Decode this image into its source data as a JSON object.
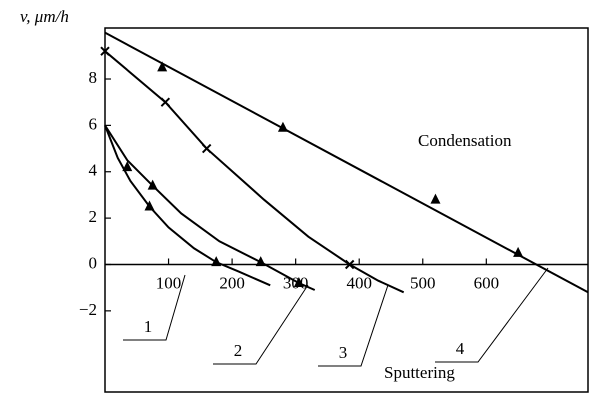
{
  "chart_data": {
    "type": "line",
    "y_label": "v, μm/h",
    "xlim": [
      0,
      760
    ],
    "ylim": [
      -5.5,
      10.2
    ],
    "xticks": [
      100,
      200,
      300,
      400,
      500,
      600
    ],
    "yticks": [
      {
        "value": -2,
        "label": "−2"
      },
      0,
      2,
      4,
      6,
      8
    ],
    "annotations": [
      "Condensation",
      "Sputtering"
    ],
    "series": [
      {
        "name": "1",
        "color": "#000000",
        "marker": "triangle",
        "x": [
          70,
          175
        ],
        "values": [
          2.5,
          0.1
        ],
        "curve_x": [
          0,
          20,
          40,
          70,
          100,
          140,
          175,
          210,
          260
        ],
        "curve_y": [
          6,
          4.6,
          3.6,
          2.5,
          1.6,
          0.7,
          0.1,
          -0.3,
          -0.9
        ]
      },
      {
        "name": "2",
        "color": "#000000",
        "marker": "triangle",
        "x": [
          35,
          75,
          245,
          305
        ],
        "values": [
          4.2,
          3.4,
          0.1,
          -0.8
        ],
        "curve_x": [
          0,
          35,
          75,
          120,
          180,
          245,
          305,
          330
        ],
        "curve_y": [
          6,
          4.5,
          3.4,
          2.2,
          1.0,
          0.1,
          -0.8,
          -1.1
        ]
      },
      {
        "name": "3",
        "color": "#000000",
        "marker": "cross",
        "x": [
          0,
          95,
          160,
          385
        ],
        "values": [
          9.2,
          7,
          5,
          0
        ],
        "curve_x": [
          0,
          95,
          160,
          250,
          320,
          385,
          430,
          470
        ],
        "curve_y": [
          9.2,
          7,
          5,
          2.8,
          1.2,
          0,
          -0.7,
          -1.2
        ]
      },
      {
        "name": "4",
        "color": "#000000",
        "marker": "triangle",
        "x": [
          90,
          280,
          520,
          650
        ],
        "values": [
          8.5,
          5.9,
          2.8,
          0.5
        ],
        "curve_x": [
          0,
          760
        ],
        "curve_y": [
          10,
          -1.2
        ]
      }
    ]
  }
}
